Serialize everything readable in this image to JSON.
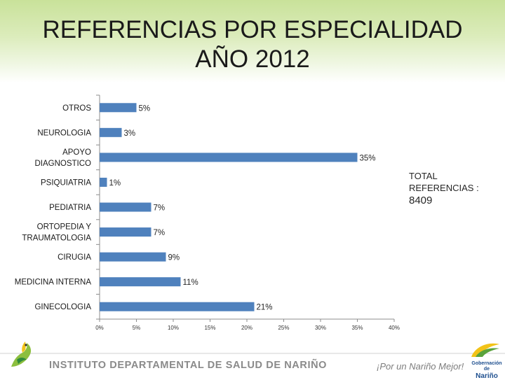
{
  "header": {
    "title_line1": "REFERENCIAS POR ESPECIALIDAD",
    "title_line2": "AÑO 2012"
  },
  "total": {
    "label_line1": "TOTAL",
    "label_line2": "REFERENCIAS :",
    "value": "8409"
  },
  "footer": {
    "organization": "INSTITUTO DEPARTAMENTAL DE SALUD DE NARIÑO",
    "slogan": "¡Por un Nariño Mejor!",
    "logo_text_small": "Gobernación de",
    "logo_text_big": "Nariño"
  },
  "colors": {
    "bar": "#4f81bd",
    "axis": "#8c8c8c",
    "header_gradient_top": "#c9e29a"
  },
  "chart_data": {
    "type": "bar",
    "orientation": "horizontal",
    "categories": [
      [
        "OTROS"
      ],
      [
        "NEUROLOGIA"
      ],
      [
        "APOYO",
        "DIAGNOSTICO"
      ],
      [
        "PSIQUIATRIA"
      ],
      [
        "PEDIATRIA"
      ],
      [
        "ORTOPEDIA Y",
        "TRAUMATOLOGIA"
      ],
      [
        "CIRUGIA"
      ],
      [
        "MEDICINA INTERNA"
      ],
      [
        "GINECOLOGIA"
      ]
    ],
    "values": [
      5,
      3,
      35,
      1,
      7,
      7,
      9,
      11,
      21
    ],
    "value_labels": [
      "5%",
      "3%",
      "35%",
      "1%",
      "7%",
      "7%",
      "9%",
      "11%",
      "21%"
    ],
    "xlim": [
      0,
      40
    ],
    "xticks": [
      0,
      5,
      10,
      15,
      20,
      25,
      30,
      35,
      40
    ],
    "xtick_labels": [
      "0%",
      "5%",
      "10%",
      "15%",
      "20%",
      "25%",
      "30%",
      "35%",
      "40%"
    ],
    "grid": false,
    "legend": "none"
  }
}
